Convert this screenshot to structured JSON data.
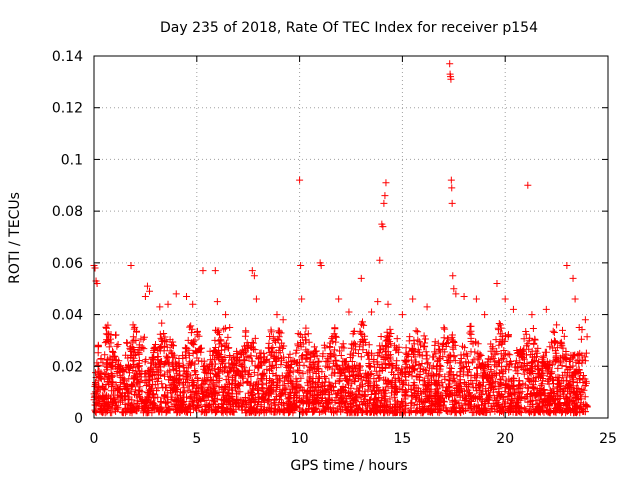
{
  "chart_data": {
    "type": "scatter",
    "title": "Day 235 of 2018, Rate Of TEC Index for receiver p154",
    "xlabel": "GPS time / hours",
    "ylabel": "ROTI / TECUs",
    "xlim": [
      0,
      25
    ],
    "ylim": [
      0,
      0.14
    ],
    "x_ticks": [
      0,
      5,
      10,
      15,
      20,
      25
    ],
    "x_tick_labels": [
      "0",
      "5",
      "10",
      "15",
      "20",
      "25"
    ],
    "y_ticks": [
      0,
      0.02,
      0.04,
      0.06,
      0.08,
      0.1,
      0.12,
      0.14
    ],
    "y_tick_labels": [
      "0",
      "0.02",
      "0.04",
      "0.06",
      "0.08",
      "0.1",
      "0.12",
      "0.14"
    ],
    "grid": true,
    "marker": "+",
    "series": [
      {
        "name": "ROTI",
        "color": "#ff0000",
        "points": [
          [
            0.0,
            0.059
          ],
          [
            0.05,
            0.058
          ],
          [
            0.1,
            0.053
          ],
          [
            0.15,
            0.052
          ],
          [
            0.2,
            0.012
          ],
          [
            1.8,
            0.059
          ],
          [
            1.9,
            0.036
          ],
          [
            2.5,
            0.047
          ],
          [
            2.6,
            0.051
          ],
          [
            2.7,
            0.049
          ],
          [
            3.2,
            0.043
          ],
          [
            3.6,
            0.044
          ],
          [
            4.0,
            0.048
          ],
          [
            4.5,
            0.047
          ],
          [
            4.8,
            0.044
          ],
          [
            5.3,
            0.057
          ],
          [
            5.9,
            0.057
          ],
          [
            6.0,
            0.045
          ],
          [
            6.4,
            0.04
          ],
          [
            6.6,
            0.035
          ],
          [
            7.7,
            0.057
          ],
          [
            7.8,
            0.055
          ],
          [
            7.9,
            0.046
          ],
          [
            8.9,
            0.04
          ],
          [
            9.2,
            0.038
          ],
          [
            10.0,
            0.092
          ],
          [
            10.05,
            0.059
          ],
          [
            10.1,
            0.046
          ],
          [
            11.0,
            0.06
          ],
          [
            11.05,
            0.059
          ],
          [
            11.9,
            0.046
          ],
          [
            12.4,
            0.041
          ],
          [
            13.0,
            0.054
          ],
          [
            13.5,
            0.041
          ],
          [
            13.8,
            0.045
          ],
          [
            13.9,
            0.061
          ],
          [
            14.0,
            0.075
          ],
          [
            14.05,
            0.074
          ],
          [
            14.1,
            0.083
          ],
          [
            14.15,
            0.086
          ],
          [
            14.2,
            0.091
          ],
          [
            14.3,
            0.044
          ],
          [
            15.0,
            0.04
          ],
          [
            15.5,
            0.046
          ],
          [
            16.2,
            0.043
          ],
          [
            17.3,
            0.137
          ],
          [
            17.32,
            0.133
          ],
          [
            17.34,
            0.132
          ],
          [
            17.36,
            0.131
          ],
          [
            17.38,
            0.092
          ],
          [
            17.4,
            0.089
          ],
          [
            17.42,
            0.083
          ],
          [
            17.45,
            0.055
          ],
          [
            17.5,
            0.05
          ],
          [
            17.6,
            0.048
          ],
          [
            18.0,
            0.047
          ],
          [
            18.6,
            0.046
          ],
          [
            19.0,
            0.04
          ],
          [
            19.6,
            0.052
          ],
          [
            20.0,
            0.046
          ],
          [
            20.4,
            0.042
          ],
          [
            21.1,
            0.09
          ],
          [
            21.3,
            0.04
          ],
          [
            22.0,
            0.042
          ],
          [
            22.5,
            0.036
          ],
          [
            23.0,
            0.059
          ],
          [
            23.3,
            0.054
          ],
          [
            23.4,
            0.046
          ],
          [
            23.6,
            0.035
          ],
          [
            23.9,
            0.038
          ]
        ],
        "dense_band": {
          "x_range": [
            0,
            24
          ],
          "y_min": 0.002,
          "y_typical_max": 0.03,
          "note": "thousands of overlapping + markers between 0 and ~0.03 TECU/min across the full day"
        }
      }
    ]
  }
}
